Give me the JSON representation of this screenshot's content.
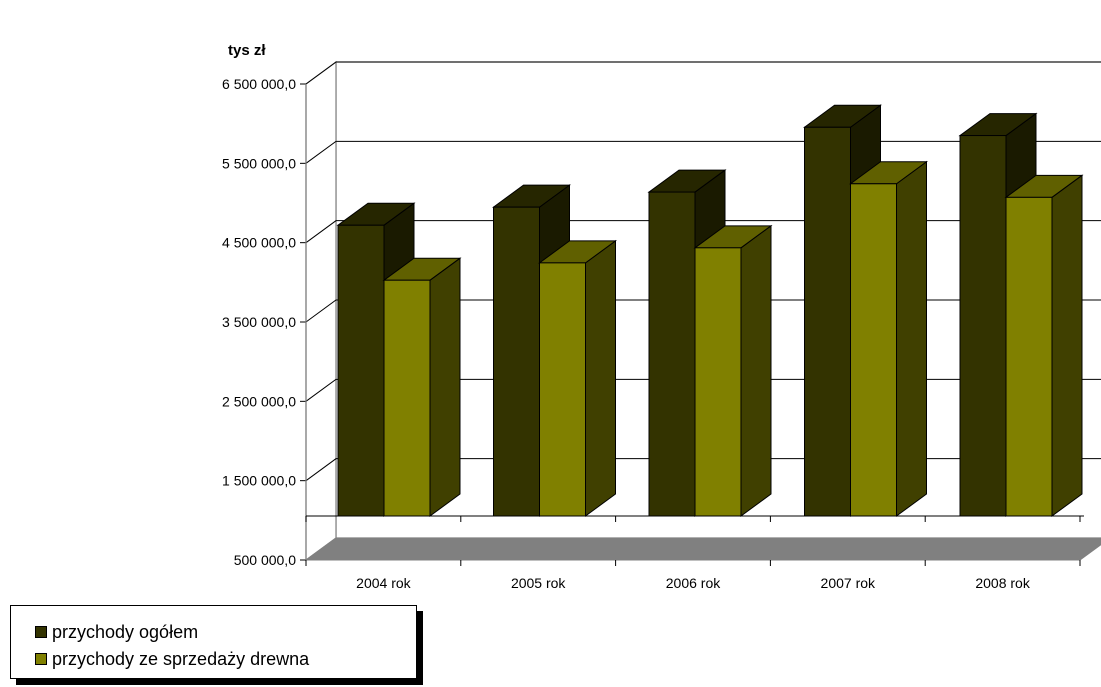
{
  "chart_data": {
    "type": "bar",
    "style": "3d-clustered-column",
    "unit_label": "tys zł",
    "categories": [
      "2004 rok",
      "2005 rok",
      "2006 rok",
      "2007 rok",
      "2008 rok"
    ],
    "series": [
      {
        "name": "przychody ogółem",
        "values": [
          4360000,
          4600000,
          4800000,
          5660000,
          5550000
        ],
        "color": "#333300"
      },
      {
        "name": "przychody ze sprzedaży drewna",
        "values": [
          3630000,
          3860000,
          4060000,
          4910000,
          4730000
        ],
        "color": "#808000"
      }
    ],
    "ylim": [
      500000,
      6500000
    ],
    "y_ticks": [
      500000,
      1500000,
      2500000,
      3500000,
      4500000,
      5500000,
      6500000
    ],
    "y_tick_labels": [
      "500 000,0",
      "1 500 000,0",
      "2 500 000,0",
      "3 500 000,0",
      "4 500 000,0",
      "5 500 000,0",
      "6 500 000,0"
    ],
    "grid": true,
    "legend_position": "bottom-left"
  }
}
